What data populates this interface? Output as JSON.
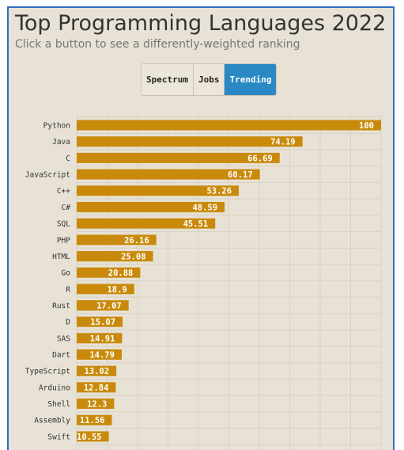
{
  "header": {
    "title": "Top Programming Languages 2022",
    "subtitle": "Click a button to see a differently-weighted ranking"
  },
  "buttons": [
    {
      "label": "Spectrum",
      "active": false
    },
    {
      "label": "Jobs",
      "active": false
    },
    {
      "label": "Trending",
      "active": true
    }
  ],
  "colors": {
    "bar": "#c98a0b",
    "active_button": "#2a89c4",
    "grid": "#d8d1c2",
    "background": "#e8e2d6"
  },
  "chart_data": {
    "type": "bar",
    "orientation": "horizontal",
    "xlim": [
      0,
      100
    ],
    "grid": true,
    "categories": [
      "Python",
      "Java",
      "C",
      "JavaScript",
      "C++",
      "C#",
      "SQL",
      "PHP",
      "HTML",
      "Go",
      "R",
      "Rust",
      "D",
      "SAS",
      "Dart",
      "TypeScript",
      "Arduino",
      "Shell",
      "Assembly",
      "Swift"
    ],
    "values": [
      100,
      74.19,
      66.69,
      60.17,
      53.26,
      48.59,
      45.51,
      26.16,
      25.08,
      20.88,
      18.9,
      17.07,
      15.07,
      14.91,
      14.79,
      13.02,
      12.84,
      12.3,
      11.56,
      10.55
    ]
  }
}
